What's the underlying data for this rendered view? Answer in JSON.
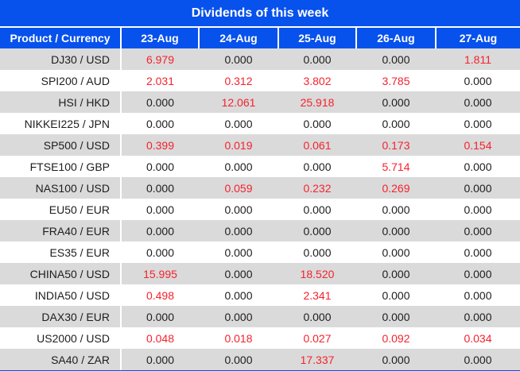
{
  "title": "Dividends of this week",
  "colors": {
    "header_bg": "#0751ec",
    "header_text": "#ffffff",
    "alt_row_bg": "#dadada",
    "row_bg": "#ffffff",
    "zero_text": "#1d1d1d",
    "nonzero_text": "#f5222d"
  },
  "table": {
    "zero_value": "0.000",
    "columns": [
      "Product / Currency",
      "23-Aug",
      "24-Aug",
      "25-Aug",
      "26-Aug",
      "27-Aug"
    ],
    "rows": [
      {
        "product": "DJ30 / USD",
        "values": [
          "6.979",
          "0.000",
          "0.000",
          "0.000",
          "1.811"
        ]
      },
      {
        "product": "SPI200 / AUD",
        "values": [
          "2.031",
          "0.312",
          "3.802",
          "3.785",
          "0.000"
        ]
      },
      {
        "product": "HSI / HKD",
        "values": [
          "0.000",
          "12.061",
          "25.918",
          "0.000",
          "0.000"
        ]
      },
      {
        "product": "NIKKEI225 / JPN",
        "values": [
          "0.000",
          "0.000",
          "0.000",
          "0.000",
          "0.000"
        ]
      },
      {
        "product": "SP500 / USD",
        "values": [
          "0.399",
          "0.019",
          "0.061",
          "0.173",
          "0.154"
        ]
      },
      {
        "product": "FTSE100 / GBP",
        "values": [
          "0.000",
          "0.000",
          "0.000",
          "5.714",
          "0.000"
        ]
      },
      {
        "product": "NAS100 / USD",
        "values": [
          "0.000",
          "0.059",
          "0.232",
          "0.269",
          "0.000"
        ]
      },
      {
        "product": "EU50 / EUR",
        "values": [
          "0.000",
          "0.000",
          "0.000",
          "0.000",
          "0.000"
        ]
      },
      {
        "product": "FRA40 / EUR",
        "values": [
          "0.000",
          "0.000",
          "0.000",
          "0.000",
          "0.000"
        ]
      },
      {
        "product": "ES35 / EUR",
        "values": [
          "0.000",
          "0.000",
          "0.000",
          "0.000",
          "0.000"
        ]
      },
      {
        "product": "CHINA50 / USD",
        "values": [
          "15.995",
          "0.000",
          "18.520",
          "0.000",
          "0.000"
        ]
      },
      {
        "product": "INDIA50 / USD",
        "values": [
          "0.498",
          "0.000",
          "2.341",
          "0.000",
          "0.000"
        ]
      },
      {
        "product": "DAX30 / EUR",
        "values": [
          "0.000",
          "0.000",
          "0.000",
          "0.000",
          "0.000"
        ]
      },
      {
        "product": "US2000 / USD",
        "values": [
          "0.048",
          "0.018",
          "0.027",
          "0.092",
          "0.034"
        ]
      },
      {
        "product": "SA40 / ZAR",
        "values": [
          "0.000",
          "0.000",
          "17.337",
          "0.000",
          "0.000"
        ]
      }
    ]
  }
}
